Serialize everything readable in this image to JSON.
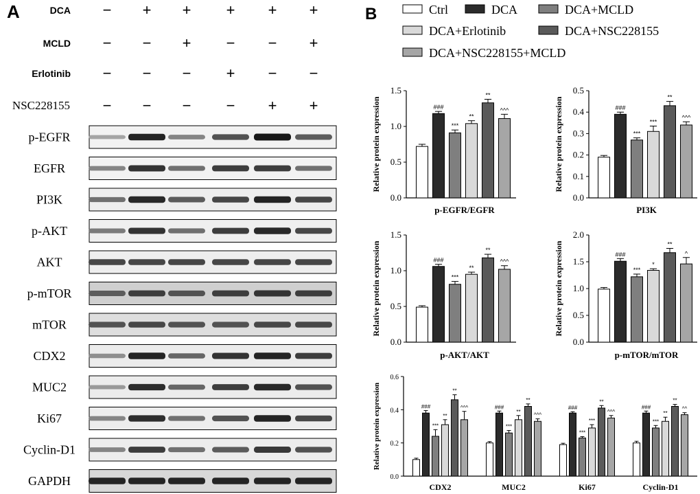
{
  "panel_a": {
    "letter": "A",
    "conditions": [
      {
        "label": "DCA",
        "values": [
          "−",
          "+",
          "+",
          "+",
          "+",
          "+"
        ]
      },
      {
        "label": "MCLD",
        "values": [
          "−",
          "−",
          "+",
          "−",
          "−",
          "+"
        ]
      },
      {
        "label": "Erlotinib",
        "values": [
          "−",
          "−",
          "−",
          "+",
          "−",
          "−"
        ]
      },
      {
        "label": "NSC228155",
        "values": [
          "−",
          "−",
          "−",
          "−",
          "+",
          "+"
        ]
      }
    ],
    "blots": [
      {
        "label": "p-EGFR",
        "intensity": [
          0.3,
          0.92,
          0.45,
          0.7,
          0.98,
          0.65
        ],
        "bg": "#f2f2f2"
      },
      {
        "label": "EGFR",
        "intensity": [
          0.45,
          0.85,
          0.55,
          0.8,
          0.8,
          0.55
        ],
        "bg": "#f2f2f2"
      },
      {
        "label": "PI3K",
        "intensity": [
          0.55,
          0.9,
          0.65,
          0.75,
          0.92,
          0.75
        ],
        "bg": "#eeeeee"
      },
      {
        "label": "p-AKT",
        "intensity": [
          0.5,
          0.85,
          0.55,
          0.8,
          0.9,
          0.75
        ],
        "bg": "#efefef"
      },
      {
        "label": "AKT",
        "intensity": [
          0.75,
          0.75,
          0.75,
          0.75,
          0.75,
          0.75
        ],
        "bg": "#eeeeee"
      },
      {
        "label": "p-mTOR",
        "intensity": [
          0.65,
          0.8,
          0.7,
          0.8,
          0.85,
          0.8
        ],
        "bg": "#cfcfcf"
      },
      {
        "label": "mTOR",
        "intensity": [
          0.7,
          0.75,
          0.7,
          0.7,
          0.75,
          0.75
        ],
        "bg": "#dedede"
      },
      {
        "label": "CDX2",
        "intensity": [
          0.4,
          0.92,
          0.6,
          0.85,
          0.92,
          0.8
        ],
        "bg": "#ececec"
      },
      {
        "label": "MUC2",
        "intensity": [
          0.35,
          0.88,
          0.6,
          0.8,
          0.9,
          0.7
        ],
        "bg": "#ececec"
      },
      {
        "label": "Ki67",
        "intensity": [
          0.45,
          0.88,
          0.55,
          0.7,
          0.92,
          0.75
        ],
        "bg": "#ededed"
      },
      {
        "label": "Cyclin-D1",
        "intensity": [
          0.45,
          0.8,
          0.55,
          0.65,
          0.82,
          0.7
        ],
        "bg": "#ededed"
      },
      {
        "label": "GAPDH",
        "intensity": [
          0.92,
          0.92,
          0.92,
          0.92,
          0.92,
          0.92
        ],
        "bg": "#d8d8d8"
      }
    ]
  },
  "panel_b": {
    "letter": "B",
    "legend": [
      {
        "label": "Ctrl",
        "color": "#ffffff"
      },
      {
        "label": "DCA",
        "color": "#2b2b2b"
      },
      {
        "label": "DCA+MCLD",
        "color": "#7f7f7f"
      },
      {
        "label": "DCA+Erlotinib",
        "color": "#d9d9d9"
      },
      {
        "label": "DCA+NSC228155",
        "color": "#5a5a5a"
      },
      {
        "label": "DCA+NSC228155+MCLD",
        "color": "#a6a6a6"
      }
    ]
  },
  "chart_data": [
    {
      "type": "bar",
      "title": "",
      "xlabel": "p-EGFR/EGFR",
      "ylabel": "Relative protein expression",
      "ylim": [
        0,
        1.5
      ],
      "yticks": [
        "0.0",
        "0.5",
        "1.0",
        "1.5"
      ],
      "series": [
        {
          "name": "Ctrl",
          "values": [
            0.72
          ],
          "errors": [
            0.03
          ],
          "annotation": ""
        },
        {
          "name": "DCA",
          "values": [
            1.18
          ],
          "errors": [
            0.03
          ],
          "annotation": "###"
        },
        {
          "name": "DCA+MCLD",
          "values": [
            0.91
          ],
          "errors": [
            0.04
          ],
          "annotation": "***"
        },
        {
          "name": "DCA+Erlotinib",
          "values": [
            1.04
          ],
          "errors": [
            0.04
          ],
          "annotation": "**"
        },
        {
          "name": "DCA+NSC228155",
          "values": [
            1.33
          ],
          "errors": [
            0.05
          ],
          "annotation": "**"
        },
        {
          "name": "DCA+NSC228155+MCLD",
          "values": [
            1.11
          ],
          "errors": [
            0.06
          ],
          "annotation": "^^^"
        }
      ]
    },
    {
      "type": "bar",
      "title": "",
      "xlabel": "PI3K",
      "ylabel": "Relative protein expression",
      "ylim": [
        0,
        0.5
      ],
      "yticks": [
        "0.0",
        "0.1",
        "0.2",
        "0.3",
        "0.4",
        "0.5"
      ],
      "series": [
        {
          "name": "Ctrl",
          "values": [
            0.19
          ],
          "errors": [
            0.008
          ],
          "annotation": ""
        },
        {
          "name": "DCA",
          "values": [
            0.39
          ],
          "errors": [
            0.01
          ],
          "annotation": "###"
        },
        {
          "name": "DCA+MCLD",
          "values": [
            0.27
          ],
          "errors": [
            0.01
          ],
          "annotation": "***"
        },
        {
          "name": "DCA+Erlotinib",
          "values": [
            0.31
          ],
          "errors": [
            0.025
          ],
          "annotation": "***"
        },
        {
          "name": "DCA+NSC228155",
          "values": [
            0.43
          ],
          "errors": [
            0.02
          ],
          "annotation": "**"
        },
        {
          "name": "DCA+NSC228155+MCLD",
          "values": [
            0.34
          ],
          "errors": [
            0.015
          ],
          "annotation": "^^^"
        }
      ]
    },
    {
      "type": "bar",
      "title": "",
      "xlabel": "p-AKT/AKT",
      "ylabel": "Relative protein expression",
      "ylim": [
        0,
        1.5
      ],
      "yticks": [
        "0.0",
        "0.5",
        "1.0",
        "1.5"
      ],
      "series": [
        {
          "name": "Ctrl",
          "values": [
            0.49
          ],
          "errors": [
            0.02
          ],
          "annotation": ""
        },
        {
          "name": "DCA",
          "values": [
            1.06
          ],
          "errors": [
            0.03
          ],
          "annotation": "###"
        },
        {
          "name": "DCA+MCLD",
          "values": [
            0.81
          ],
          "errors": [
            0.04
          ],
          "annotation": "***"
        },
        {
          "name": "DCA+Erlotinib",
          "values": [
            0.95
          ],
          "errors": [
            0.03
          ],
          "annotation": "**"
        },
        {
          "name": "DCA+NSC228155",
          "values": [
            1.18
          ],
          "errors": [
            0.05
          ],
          "annotation": "**"
        },
        {
          "name": "DCA+NSC228155+MCLD",
          "values": [
            1.02
          ],
          "errors": [
            0.05
          ],
          "annotation": "^^^"
        }
      ]
    },
    {
      "type": "bar",
      "title": "",
      "xlabel": "p-mTOR/mTOR",
      "ylabel": "Relative protein expression",
      "ylim": [
        0,
        2.0
      ],
      "yticks": [
        "0.0",
        "0.5",
        "1.0",
        "1.5",
        "2.0"
      ],
      "series": [
        {
          "name": "Ctrl",
          "values": [
            0.99
          ],
          "errors": [
            0.03
          ],
          "annotation": ""
        },
        {
          "name": "DCA",
          "values": [
            1.51
          ],
          "errors": [
            0.05
          ],
          "annotation": "###"
        },
        {
          "name": "DCA+MCLD",
          "values": [
            1.22
          ],
          "errors": [
            0.05
          ],
          "annotation": "***"
        },
        {
          "name": "DCA+Erlotinib",
          "values": [
            1.34
          ],
          "errors": [
            0.03
          ],
          "annotation": "*"
        },
        {
          "name": "DCA+NSC228155",
          "values": [
            1.67
          ],
          "errors": [
            0.08
          ],
          "annotation": "**"
        },
        {
          "name": "DCA+NSC228155+MCLD",
          "values": [
            1.46
          ],
          "errors": [
            0.12
          ],
          "annotation": "^"
        }
      ]
    },
    {
      "type": "bar",
      "title": "",
      "xlabel": "",
      "ylabel": "Relative protein expression",
      "ylim": [
        0,
        0.6
      ],
      "yticks": [
        "0.0",
        "0.2",
        "0.4",
        "0.6"
      ],
      "categories": [
        "CDX2",
        "MUC2",
        "Ki67",
        "Cyclin-D1"
      ],
      "series": [
        {
          "name": "Ctrl",
          "values": [
            0.1,
            0.2,
            0.19,
            0.2
          ],
          "errors": [
            0.008,
            0.008,
            0.008,
            0.01
          ],
          "annotations": [
            "",
            "",
            "",
            ""
          ]
        },
        {
          "name": "DCA",
          "values": [
            0.38,
            0.38,
            0.38,
            0.38
          ],
          "errors": [
            0.015,
            0.012,
            0.008,
            0.012
          ],
          "annotations": [
            "###",
            "###",
            "###",
            "###"
          ]
        },
        {
          "name": "DCA+MCLD",
          "values": [
            0.24,
            0.26,
            0.23,
            0.29
          ],
          "errors": [
            0.04,
            0.015,
            0.008,
            0.015
          ],
          "annotations": [
            "***",
            "***",
            "***",
            "***"
          ]
        },
        {
          "name": "DCA+Erlotinib",
          "values": [
            0.31,
            0.34,
            0.29,
            0.33
          ],
          "errors": [
            0.03,
            0.025,
            0.02,
            0.025
          ],
          "annotations": [
            "**",
            "**",
            "***",
            "**"
          ]
        },
        {
          "name": "DCA+NSC228155",
          "values": [
            0.46,
            0.42,
            0.41,
            0.42
          ],
          "errors": [
            0.03,
            0.015,
            0.015,
            0.012
          ],
          "annotations": [
            "**",
            "**",
            "**",
            "**"
          ]
        },
        {
          "name": "DCA+NSC228155+MCLD",
          "values": [
            0.34,
            0.33,
            0.35,
            0.37
          ],
          "errors": [
            0.05,
            0.015,
            0.015,
            0.012
          ],
          "annotations": [
            "^^^",
            "^^^",
            "^^^",
            "^^"
          ]
        }
      ]
    }
  ]
}
